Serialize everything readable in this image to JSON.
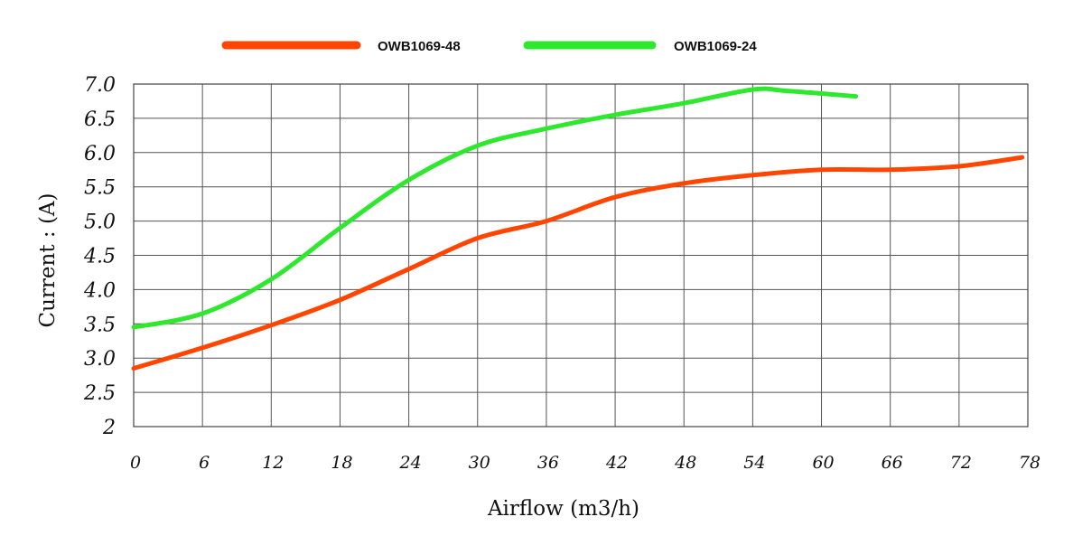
{
  "chart_data": {
    "type": "line",
    "xlabel": "Airflow (m3/h)",
    "ylabel": "Current : (A)",
    "xlim": [
      0,
      78
    ],
    "ylim": [
      2,
      7
    ],
    "x_ticks": [
      "0",
      "6",
      "12",
      "18",
      "24",
      "30",
      "36",
      "42",
      "48",
      "54",
      "60",
      "66",
      "72",
      "78"
    ],
    "y_ticks": [
      "2",
      "2.5",
      "3.0",
      "3.5",
      "4.0",
      "4.5",
      "5.0",
      "5.5",
      "6.0",
      "6.5",
      "7.0"
    ],
    "grid": true,
    "legend_position": "top",
    "series": [
      {
        "name": "OWB1069-48",
        "color": "#ff4500",
        "x": [
          0,
          6,
          12,
          18,
          24,
          30,
          36,
          42,
          48,
          54,
          60,
          66,
          72,
          77.5
        ],
        "y": [
          2.85,
          3.15,
          3.48,
          3.85,
          4.3,
          4.75,
          5.0,
          5.35,
          5.55,
          5.67,
          5.75,
          5.75,
          5.8,
          5.93
        ]
      },
      {
        "name": "OWB1069-24",
        "color": "#2ee82e",
        "x": [
          0,
          6,
          12,
          18,
          24,
          30,
          36,
          42,
          48,
          54,
          57,
          63
        ],
        "y": [
          3.45,
          3.65,
          4.15,
          4.9,
          5.6,
          6.1,
          6.35,
          6.55,
          6.72,
          6.92,
          6.9,
          6.82
        ]
      }
    ]
  }
}
